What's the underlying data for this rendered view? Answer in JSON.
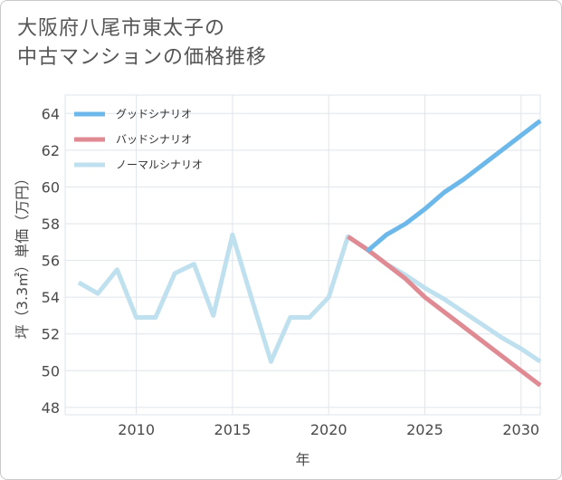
{
  "title_lines": [
    "大阪府八尾市東太子の",
    "中古マンションの価格推移"
  ],
  "chart_data": {
    "type": "line",
    "title": "大阪府八尾市東太子の中古マンションの価格推移",
    "xlabel": "年",
    "ylabel": "坪（3.3㎡）単価（万円）",
    "xlim": [
      2006.3,
      2031
    ],
    "ylim": [
      47.6,
      65
    ],
    "xticks": [
      2010,
      2015,
      2020,
      2025,
      2030
    ],
    "yticks": [
      48,
      50,
      52,
      54,
      56,
      58,
      60,
      62,
      64
    ],
    "legend_position": "top-left",
    "series": [
      {
        "name": "グッドシナリオ",
        "color": "#6cb8ea",
        "x": [
          2022,
          2023,
          2024,
          2025,
          2026,
          2027,
          2028,
          2029,
          2030,
          2031
        ],
        "y": [
          56.5,
          57.4,
          58.0,
          58.8,
          59.7,
          60.4,
          61.2,
          62.0,
          62.8,
          63.6
        ]
      },
      {
        "name": "バッドシナリオ",
        "color": "#e08a94",
        "x": [
          2021,
          2022,
          2023,
          2024,
          2025,
          2026,
          2027,
          2028,
          2029,
          2030,
          2031
        ],
        "y": [
          57.3,
          56.6,
          55.8,
          55.0,
          54.0,
          53.2,
          52.4,
          51.6,
          50.8,
          50.0,
          49.2
        ]
      },
      {
        "name": "ノーマルシナリオ",
        "color": "#bfe0ee",
        "x": [
          2007,
          2008,
          2009,
          2010,
          2011,
          2012,
          2013,
          2014,
          2015,
          2016,
          2017,
          2018,
          2019,
          2020,
          2021,
          2022,
          2023,
          2024,
          2025,
          2026,
          2027,
          2028,
          2029,
          2030,
          2031
        ],
        "y": [
          54.8,
          54.2,
          55.5,
          52.9,
          52.9,
          55.3,
          55.8,
          53.0,
          57.4,
          53.9,
          50.5,
          52.9,
          52.9,
          54.0,
          57.3,
          56.6,
          55.8,
          55.2,
          54.5,
          53.9,
          53.2,
          52.5,
          51.8,
          51.2,
          50.5
        ]
      }
    ]
  }
}
